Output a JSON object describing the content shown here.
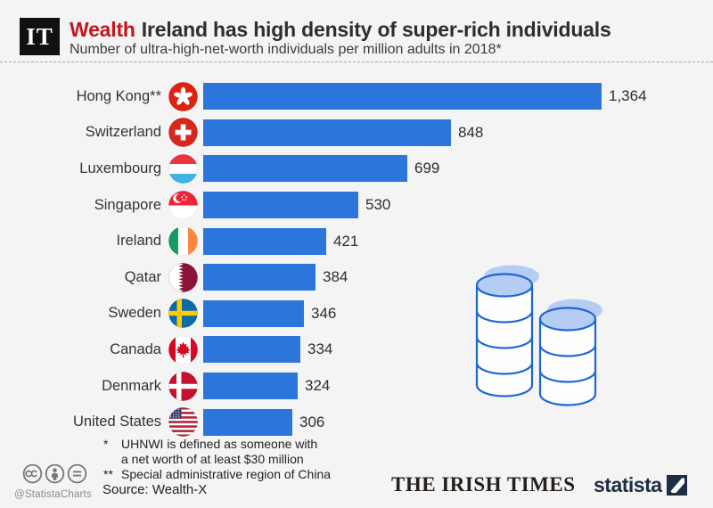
{
  "header": {
    "logo_text": "IT",
    "series_tag": "Wealth",
    "title": "Ireland has high density of super-rich individuals",
    "subtitle": "Number of ultra-high-net-worth individuals per million adults in 2018*"
  },
  "chart_data": {
    "type": "bar",
    "orientation": "horizontal",
    "title": "Number of ultra-high-net-worth individuals per million adults in 2018",
    "categories": [
      "Hong Kong**",
      "Switzerland",
      "Luxembourg",
      "Singapore",
      "Ireland",
      "Qatar",
      "Sweden",
      "Canada",
      "Denmark",
      "United States"
    ],
    "values": [
      1364,
      848,
      699,
      530,
      421,
      384,
      346,
      334,
      324,
      306
    ],
    "value_labels": [
      "1,364",
      "848",
      "699",
      "530",
      "421",
      "384",
      "346",
      "334",
      "324",
      "306"
    ],
    "flags": [
      "flag-hong-kong-icon",
      "flag-switzerland-icon",
      "flag-luxembourg-icon",
      "flag-singapore-icon",
      "flag-ireland-icon",
      "flag-qatar-icon",
      "flag-sweden-icon",
      "flag-canada-icon",
      "flag-denmark-icon",
      "flag-united-states-icon"
    ],
    "bar_color": "#2c76db",
    "xlim": [
      0,
      1450
    ],
    "grid": false,
    "legend": "none",
    "value_label_position": "end-of-bar"
  },
  "footnotes": {
    "lines": [
      {
        "marker": "*",
        "text": "UHNWI is defined as someone with"
      },
      {
        "marker": "",
        "text": "a net worth of at least $30 million"
      },
      {
        "marker": "**",
        "text": "Special administrative region of China"
      }
    ],
    "source": "Source: Wealth-X"
  },
  "footer": {
    "credit": "@StatistaCharts",
    "publisher": "THE IRISH TIMES",
    "brand": "statista"
  },
  "colors": {
    "background": "#f4f4f4",
    "bar_blue": "#2c76db",
    "tag_red": "#c2151c",
    "brand_navy": "#1d2d42",
    "coin_stroke": "#1e66d2",
    "coin_fill": "#b5cdf3"
  }
}
